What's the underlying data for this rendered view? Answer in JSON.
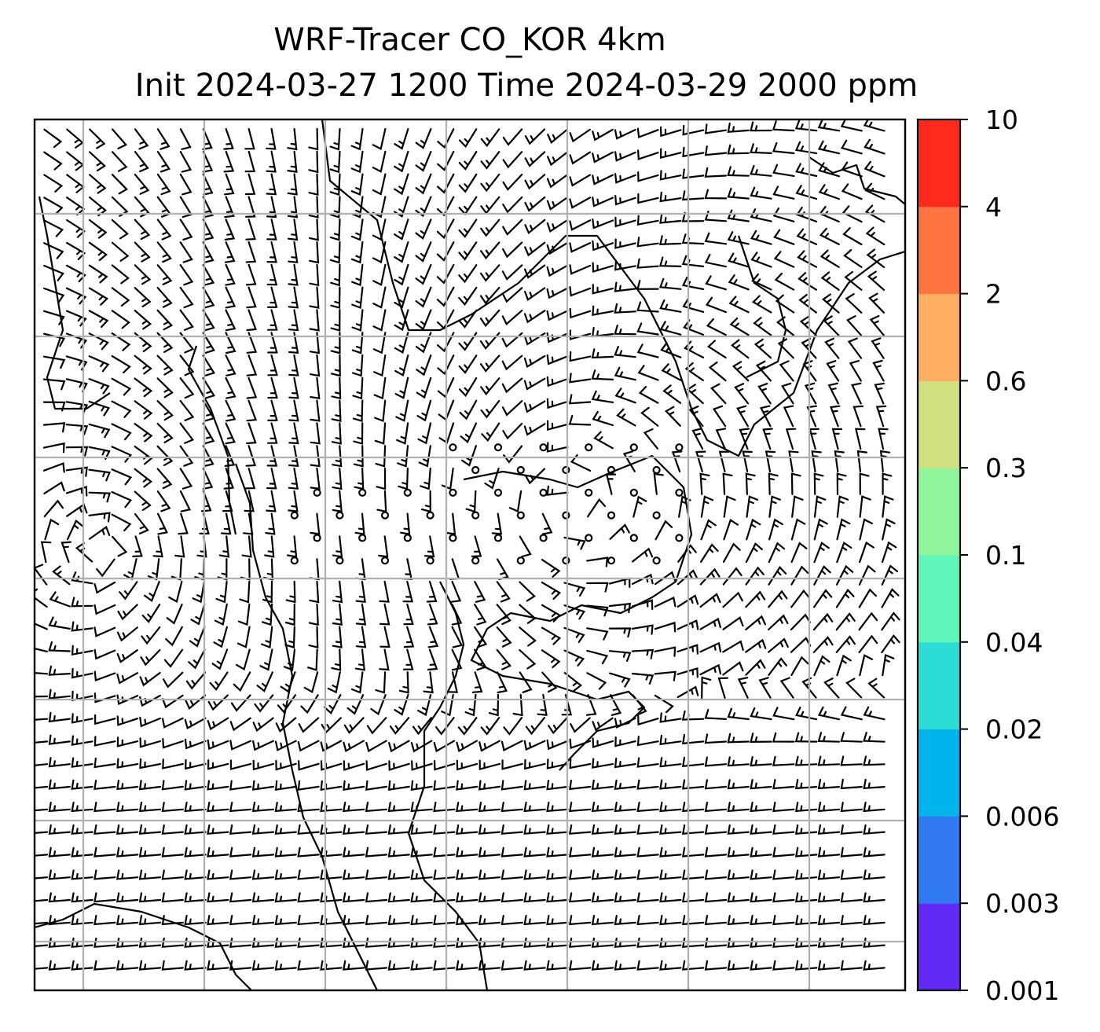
{
  "title": {
    "line1": "WRF-Tracer CO_KOR 4km",
    "line2": "Init 2024-03-27 1200 Time 2024-03-29 2000 ppm"
  },
  "colorbar": {
    "levels": [
      "0.001",
      "0.003",
      "0.006",
      "0.02",
      "0.04",
      "0.1",
      "0.3",
      "0.6",
      "2",
      "4",
      "10"
    ],
    "colors": [
      "#6329f5",
      "#3179f1",
      "#00b4ec",
      "#2ddcd4",
      "#60f6b9",
      "#8ff49a",
      "#d1e07f",
      "#ffae62",
      "#ff7441",
      "#ff2a1b"
    ]
  },
  "map": {
    "grid": "on",
    "gridline_color": "#b0b0b0",
    "coastline_color": "#000000",
    "wind_barbs": "on",
    "calm_markers": "on"
  }
}
